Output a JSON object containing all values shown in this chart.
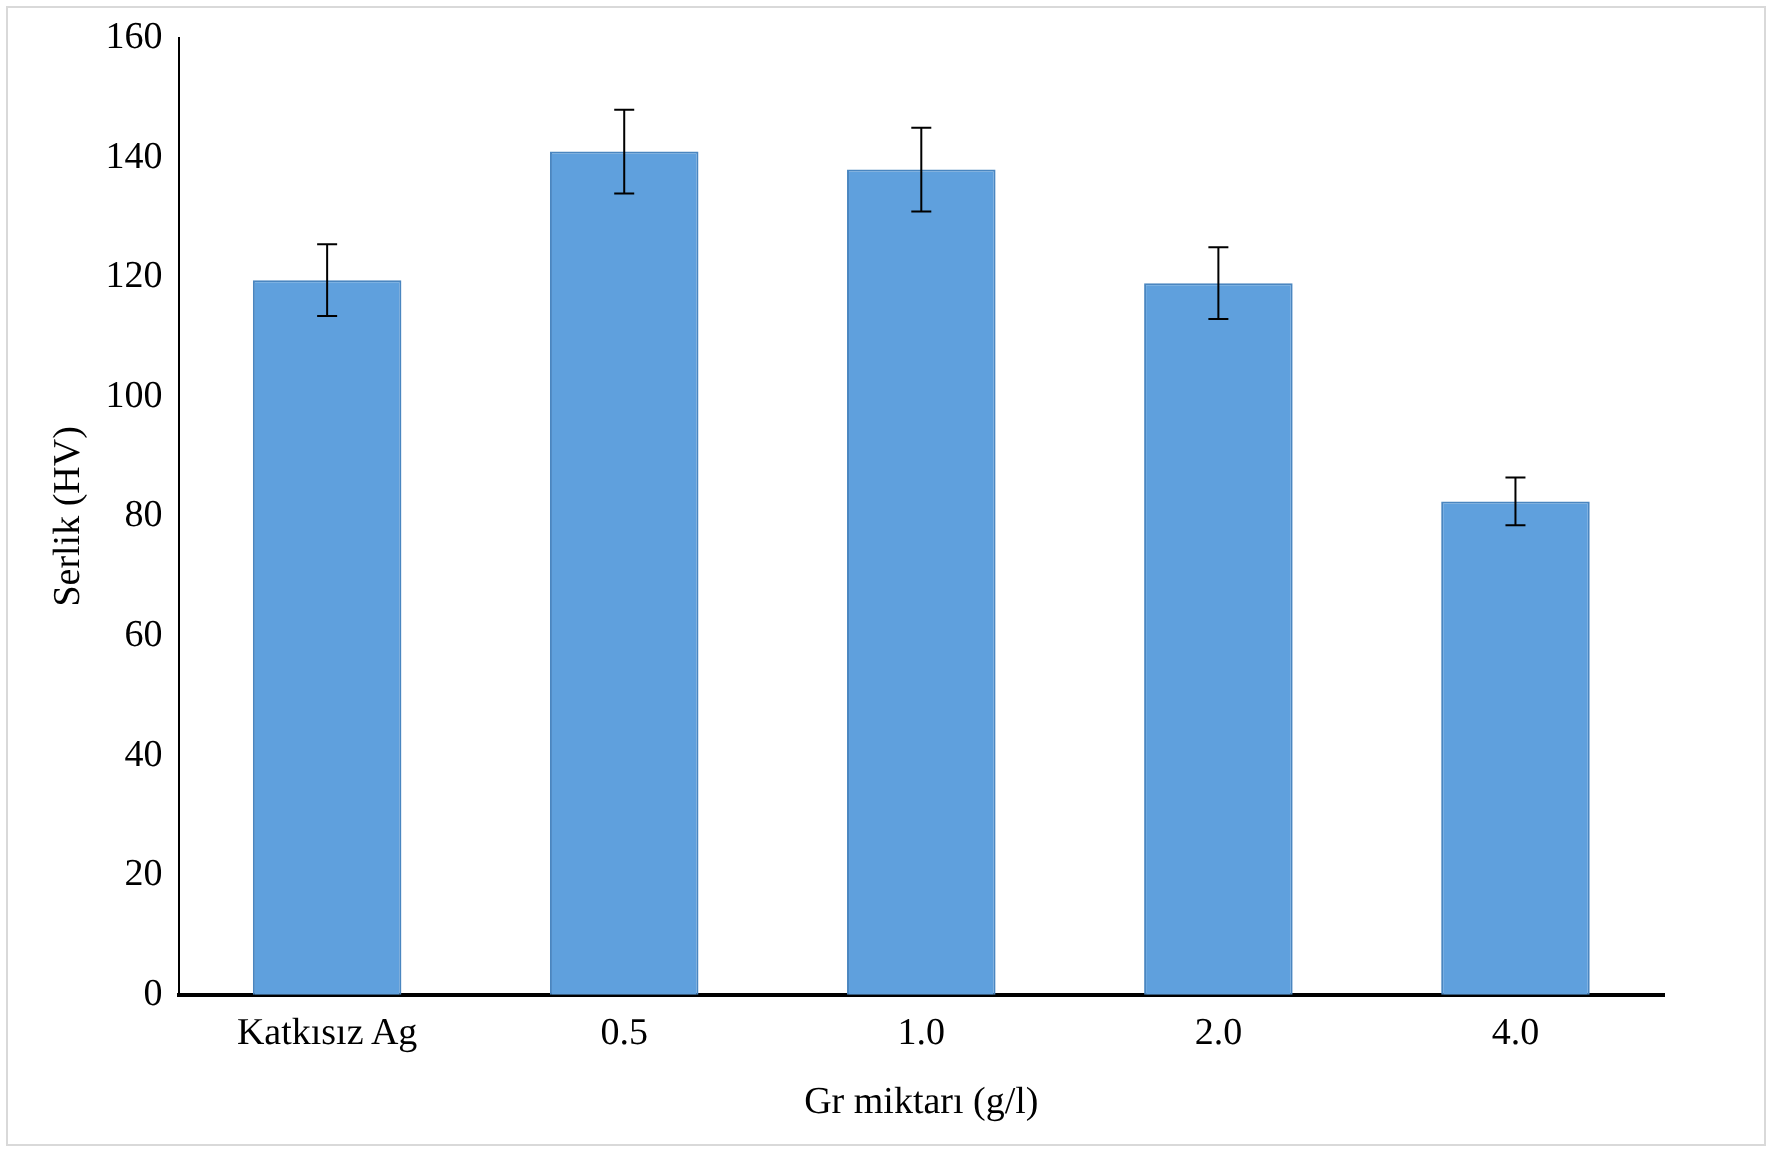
{
  "chart_data": {
    "type": "bar",
    "xlabel": "Gr miktarı (g/l)",
    "ylabel": "Serlik (HV)",
    "categories": [
      "Katkısız Ag",
      "0.5",
      "1.0",
      "2.0",
      "4.0"
    ],
    "values": [
      119.5,
      141,
      138,
      119,
      82.5
    ],
    "errors": [
      6,
      7,
      7,
      6,
      4
    ],
    "color": "#5fa0dd",
    "ylim": [
      0,
      160
    ],
    "yticks": [
      0,
      20,
      40,
      60,
      80,
      100,
      120,
      140,
      160
    ],
    "grid": false,
    "legend": false
  }
}
